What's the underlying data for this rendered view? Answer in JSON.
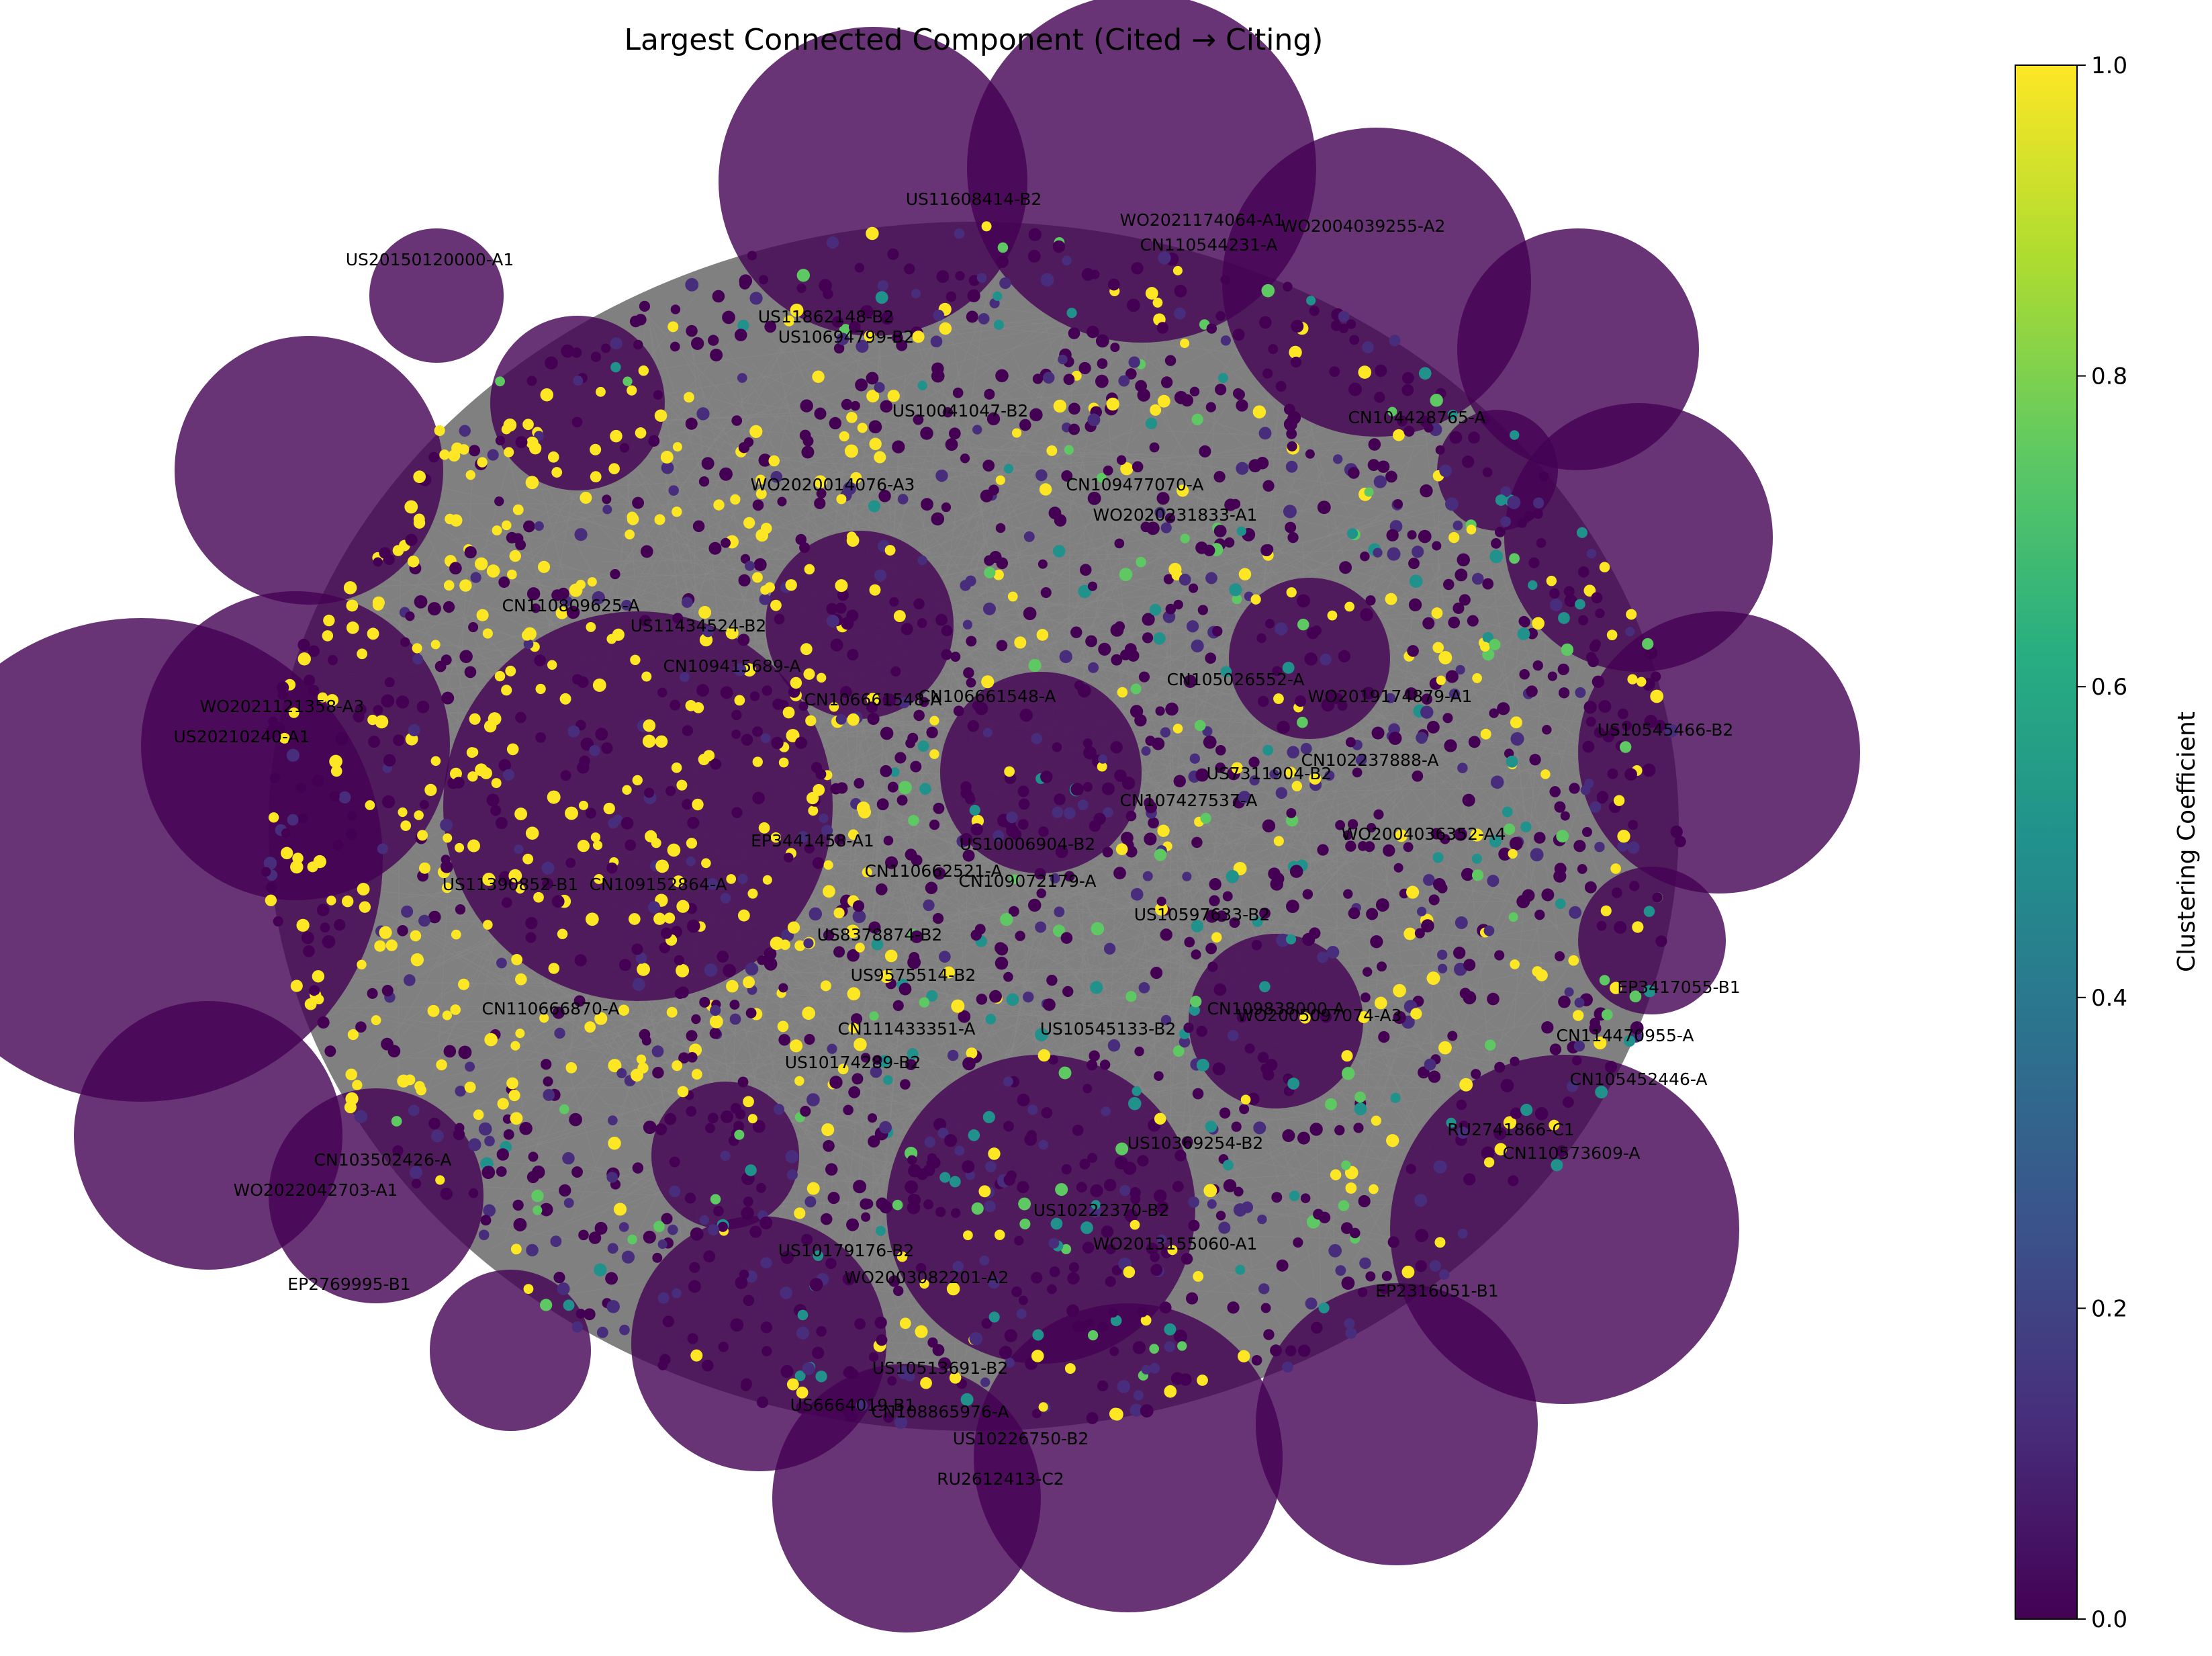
{
  "title": "Largest Connected Component (Cited → Citing)",
  "colorbar": {
    "label": "Clustering Coefficient",
    "ticks": [
      "0.0",
      "0.2",
      "0.4",
      "0.6",
      "0.8",
      "1.0"
    ],
    "range": [
      0,
      1
    ],
    "colormap": "viridis",
    "colors": [
      "#440154",
      "#3b528b",
      "#21918c",
      "#5ec962",
      "#fde725"
    ]
  },
  "edge_color": "#808080",
  "node_labels": [
    "US11608414-B2",
    "WO2021174064-A1",
    "US20150120000-A1",
    "CN110544231-A",
    "EP3441458-A1",
    "US10041047-B2",
    "WO2020014076-A3",
    "CN109477070-A",
    "WO2020231833-A1",
    "CN110809625-A",
    "US11434524-B2",
    "CN109415689-A",
    "CN105026552-A",
    "WO2019174879-A1",
    "CN106661548-A",
    "CN102237888-A",
    "US7311904-B2",
    "CN107427537-A",
    "US10006904-B2",
    "US11390852-B1",
    "CN109152864-A",
    "CN110662521-A",
    "CN109072179-A",
    "US10597633-B2",
    "CN110666870-A",
    "US8378874-B2",
    "US9575514-B2",
    "CN111433351-A",
    "US10545133-B2",
    "WO2005097074-A3",
    "US10174289-B2",
    "US10369254-B2",
    "CN103502426-A",
    "WO2022042703-A1",
    "US10222370-B2",
    "WO2013155060-A1",
    "US10179176-B2",
    "WO2003082201-A2",
    "US6664019-B1",
    "CN108865976-A",
    "RU2612413-C2",
    "CN110573609-A",
    "RU2741866-C1",
    "EP2316051-B1",
    "US10513691-B2",
    "CN104428765-A",
    "WO2004039255-A2",
    "US11862148-B2",
    "US10694799-B2",
    "WO2021121358-A3",
    "EP3417055-B1",
    "CN114470955-A",
    "US10545466-B2",
    "CN106661548-A",
    "WO2004036352-A4",
    "CN105452446-A",
    "EP2769995-B1",
    "US10226750-B2",
    "US20210240-A1",
    "CN109838000-A"
  ]
}
